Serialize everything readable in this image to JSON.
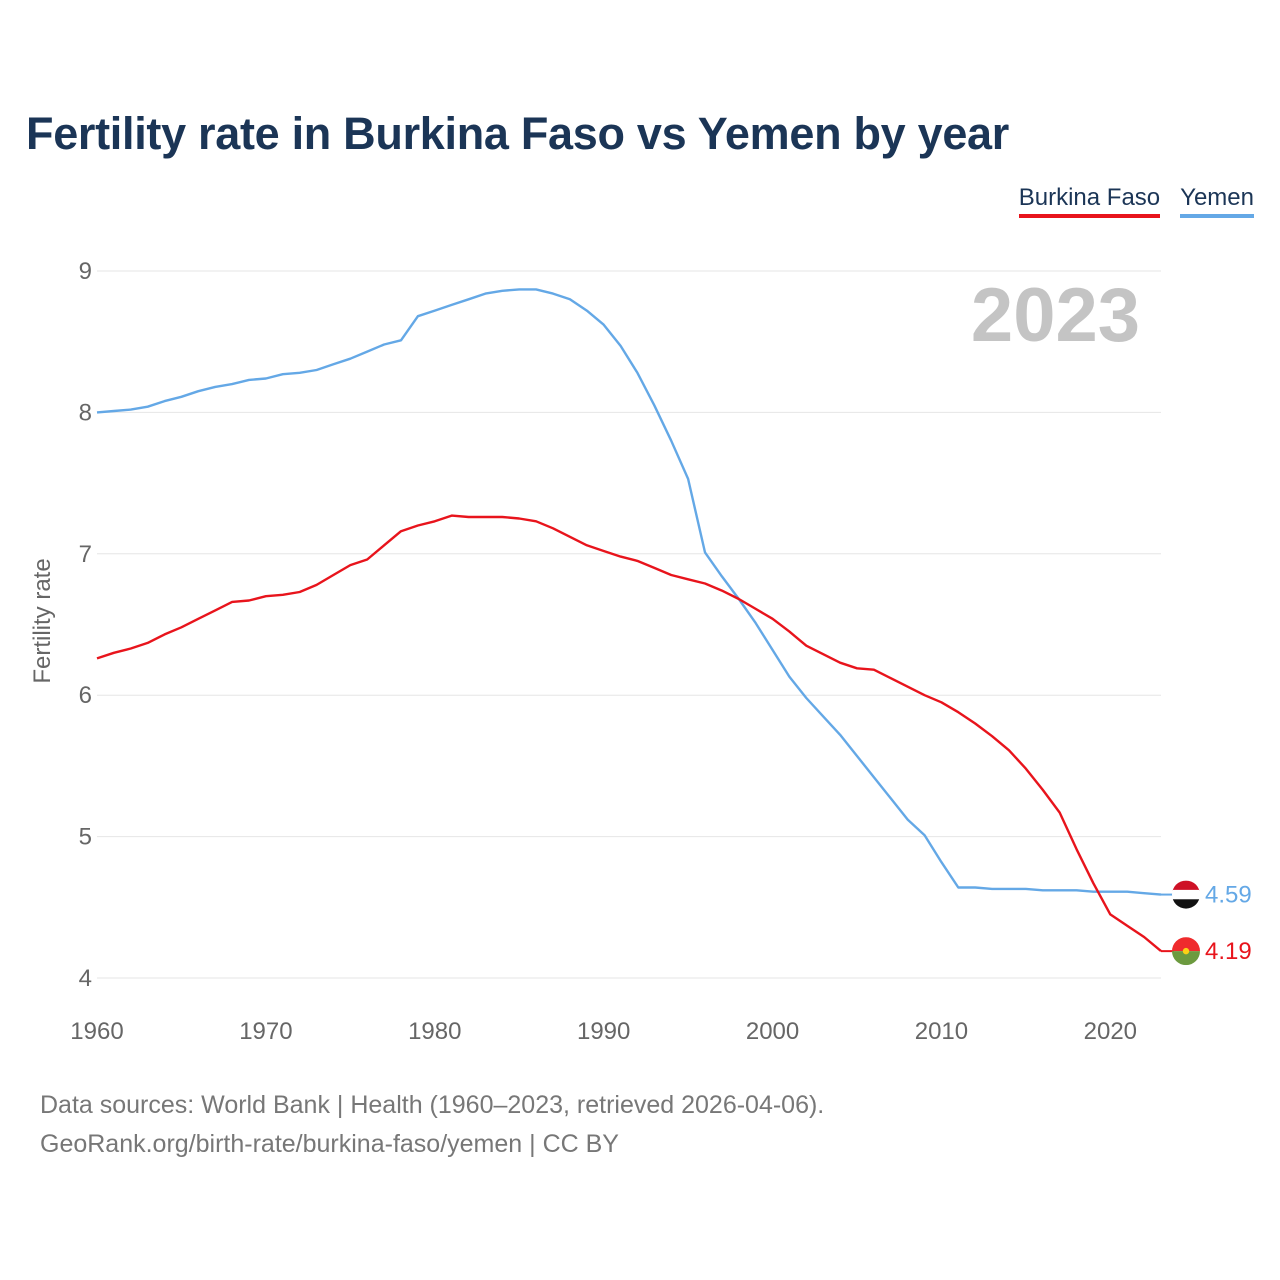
{
  "title": "Fertility rate in Burkina Faso vs Yemen by year",
  "legend": [
    {
      "name": "Burkina Faso",
      "color": "#e8141c"
    },
    {
      "name": "Yemen",
      "color": "#64a8e6"
    }
  ],
  "year_marker": "2023",
  "footer": {
    "line1": "Data sources: World Bank | Health (1960–2023, retrieved 2026-04-06).",
    "line2": "GeoRank.org/birth-rate/burkina-faso/yemen | CC BY"
  },
  "chart_data": {
    "type": "line",
    "title": "Fertility rate in Burkina Faso vs Yemen by year",
    "xlabel": "",
    "ylabel": "Fertility rate",
    "xlim": [
      1960,
      2023
    ],
    "ylim": [
      4,
      9
    ],
    "x_ticks": [
      "1960",
      "1970",
      "1980",
      "1990",
      "2000",
      "2010",
      "2020"
    ],
    "y_ticks": [
      "4",
      "5",
      "6",
      "7",
      "8",
      "9"
    ],
    "grid": true,
    "legend_position": "top-right",
    "x": [
      1960,
      1961,
      1962,
      1963,
      1964,
      1965,
      1966,
      1967,
      1968,
      1969,
      1970,
      1971,
      1972,
      1973,
      1974,
      1975,
      1976,
      1977,
      1978,
      1979,
      1980,
      1981,
      1982,
      1983,
      1984,
      1985,
      1986,
      1987,
      1988,
      1989,
      1990,
      1991,
      1992,
      1993,
      1994,
      1995,
      1996,
      1997,
      1998,
      1999,
      2000,
      2001,
      2002,
      2003,
      2004,
      2005,
      2006,
      2007,
      2008,
      2009,
      2010,
      2011,
      2012,
      2013,
      2014,
      2015,
      2016,
      2017,
      2018,
      2019,
      2020,
      2021,
      2022,
      2023
    ],
    "series": [
      {
        "name": "Yemen",
        "color": "#64a8e6",
        "end_label": "4.59",
        "values": [
          8.0,
          8.01,
          8.02,
          8.04,
          8.08,
          8.11,
          8.15,
          8.18,
          8.2,
          8.23,
          8.24,
          8.27,
          8.28,
          8.3,
          8.34,
          8.38,
          8.43,
          8.48,
          8.51,
          8.68,
          8.72,
          8.76,
          8.8,
          8.84,
          8.86,
          8.87,
          8.87,
          8.84,
          8.8,
          8.72,
          8.62,
          8.47,
          8.28,
          8.05,
          7.8,
          7.53,
          7.01,
          6.84,
          6.68,
          6.51,
          6.32,
          6.13,
          5.98,
          5.85,
          5.72,
          5.57,
          5.42,
          5.27,
          5.12,
          5.01,
          4.82,
          4.64,
          4.64,
          4.63,
          4.63,
          4.63,
          4.62,
          4.62,
          4.62,
          4.61,
          4.61,
          4.61,
          4.6,
          4.59
        ]
      },
      {
        "name": "Burkina Faso",
        "color": "#e8141c",
        "end_label": "4.19",
        "values": [
          6.26,
          6.3,
          6.33,
          6.37,
          6.43,
          6.48,
          6.54,
          6.6,
          6.66,
          6.67,
          6.7,
          6.71,
          6.73,
          6.78,
          6.85,
          6.92,
          6.96,
          7.06,
          7.16,
          7.2,
          7.23,
          7.27,
          7.26,
          7.26,
          7.26,
          7.25,
          7.23,
          7.18,
          7.12,
          7.06,
          7.02,
          6.98,
          6.95,
          6.9,
          6.85,
          6.82,
          6.79,
          6.74,
          6.68,
          6.61,
          6.54,
          6.45,
          6.35,
          6.29,
          6.23,
          6.19,
          6.18,
          6.12,
          6.06,
          6.0,
          5.95,
          5.88,
          5.8,
          5.71,
          5.61,
          5.48,
          5.33,
          5.17,
          4.91,
          4.67,
          4.45,
          4.37,
          4.29,
          4.19
        ]
      }
    ]
  }
}
